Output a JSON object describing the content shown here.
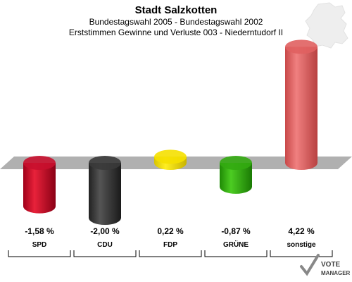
{
  "title": "Stadt Salzkotten",
  "subtitle": "Bundestagswahl 2005 - Bundestagswahl 2002",
  "subtitle2": "Erststimmen Gewinne und Verluste 003 - Niederntudorf II",
  "logo": {
    "line1": "VOTE",
    "line2": "MANAGER"
  },
  "chart_data": {
    "type": "bar",
    "title": "Stadt Salzkotten",
    "categories": [
      "SPD",
      "CDU",
      "FDP",
      "GRÜNE",
      "sonstige"
    ],
    "values": [
      -1.58,
      -2.0,
      0.22,
      -0.87,
      4.22
    ],
    "value_labels": [
      "-1,58 %",
      "-2,00 %",
      "0,22 %",
      "-0,87 %",
      "4,22 %"
    ],
    "colors": [
      "#c8102e",
      "#3a3a3a",
      "#f5e000",
      "#33aa11",
      "#e06060"
    ],
    "xlabel": "",
    "ylabel": "",
    "grid": false
  }
}
